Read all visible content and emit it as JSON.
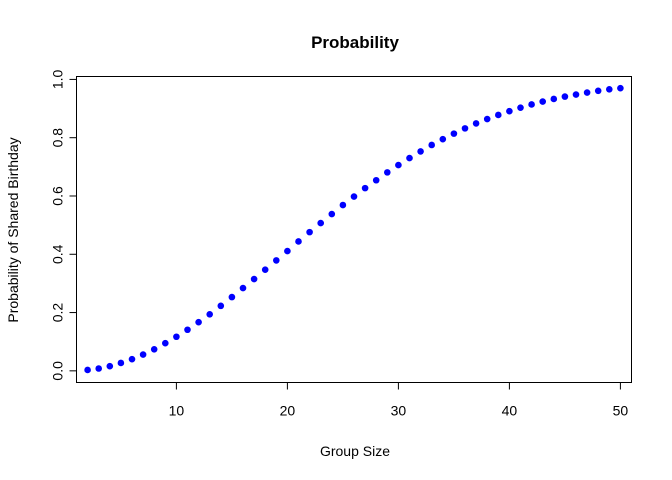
{
  "chart_data": {
    "type": "scatter",
    "title": "Probability",
    "xlabel": "Group Size",
    "ylabel": "Probability of Shared Birthday",
    "xlim": [
      1.0,
      51.0
    ],
    "ylim": [
      -0.04,
      1.01
    ],
    "xticks": [
      10,
      20,
      30,
      40,
      50
    ],
    "xtick_labels": [
      "10",
      "20",
      "30",
      "40",
      "50"
    ],
    "yticks": [
      0.0,
      0.2,
      0.4,
      0.6,
      0.8,
      1.0
    ],
    "ytick_labels": [
      "0.0",
      "0.2",
      "0.4",
      "0.6",
      "0.8",
      "1.0"
    ],
    "grid": false,
    "point_color": "#0000ff",
    "x": [
      2,
      3,
      4,
      5,
      6,
      7,
      8,
      9,
      10,
      11,
      12,
      13,
      14,
      15,
      16,
      17,
      18,
      19,
      20,
      21,
      22,
      23,
      24,
      25,
      26,
      27,
      28,
      29,
      30,
      31,
      32,
      33,
      34,
      35,
      36,
      37,
      38,
      39,
      40,
      41,
      42,
      43,
      44,
      45,
      46,
      47,
      48,
      49,
      50
    ],
    "y": [
      0.003,
      0.008,
      0.016,
      0.027,
      0.04,
      0.056,
      0.074,
      0.095,
      0.117,
      0.141,
      0.167,
      0.194,
      0.223,
      0.253,
      0.284,
      0.315,
      0.347,
      0.379,
      0.411,
      0.444,
      0.476,
      0.507,
      0.538,
      0.569,
      0.598,
      0.627,
      0.654,
      0.681,
      0.706,
      0.73,
      0.753,
      0.775,
      0.795,
      0.814,
      0.832,
      0.849,
      0.864,
      0.878,
      0.891,
      0.903,
      0.914,
      0.924,
      0.933,
      0.941,
      0.948,
      0.955,
      0.961,
      0.966,
      0.97
    ]
  }
}
